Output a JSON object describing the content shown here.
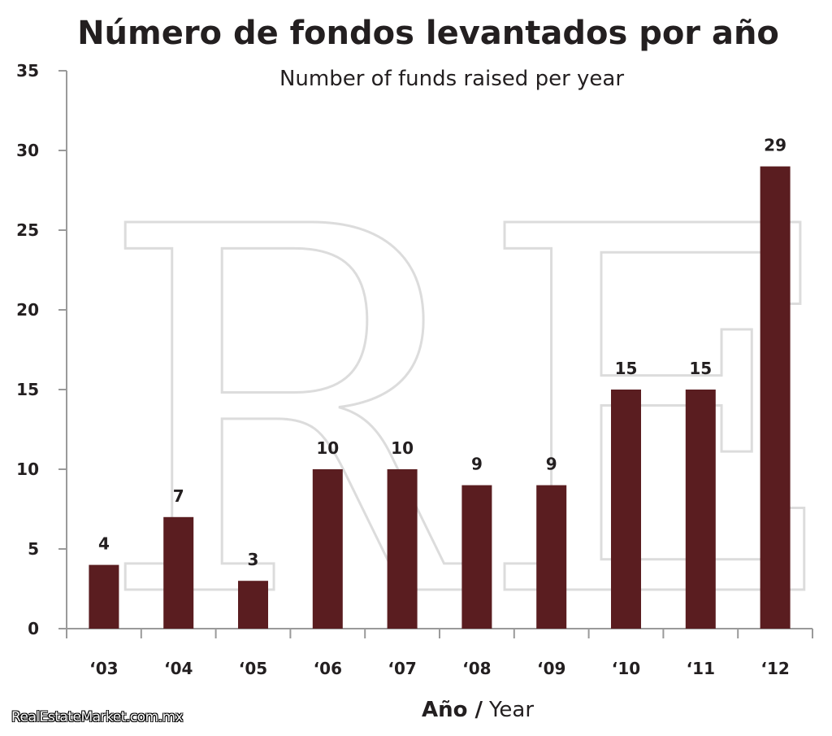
{
  "chart_data": {
    "type": "bar",
    "title": "Número de fondos levantados por año",
    "subtitle": "Number of funds raised per year",
    "categories": [
      "‘03",
      "‘04",
      "‘05",
      "‘06",
      "‘07",
      "‘08",
      "‘09",
      "‘10",
      "‘11",
      "‘12"
    ],
    "values": [
      4,
      7,
      3,
      10,
      10,
      9,
      9,
      15,
      15,
      29
    ],
    "xlabel_bold": "Año /",
    "xlabel_normal": "Year",
    "ylabel": "",
    "ylim": [
      0,
      35
    ],
    "yticks": [
      0,
      5,
      10,
      15,
      20,
      25,
      30,
      35
    ],
    "grid": false,
    "bar_color": "#5a1d20",
    "watermark": "RE"
  },
  "footer": {
    "credit": "RealEstateMarket.com.mx"
  }
}
